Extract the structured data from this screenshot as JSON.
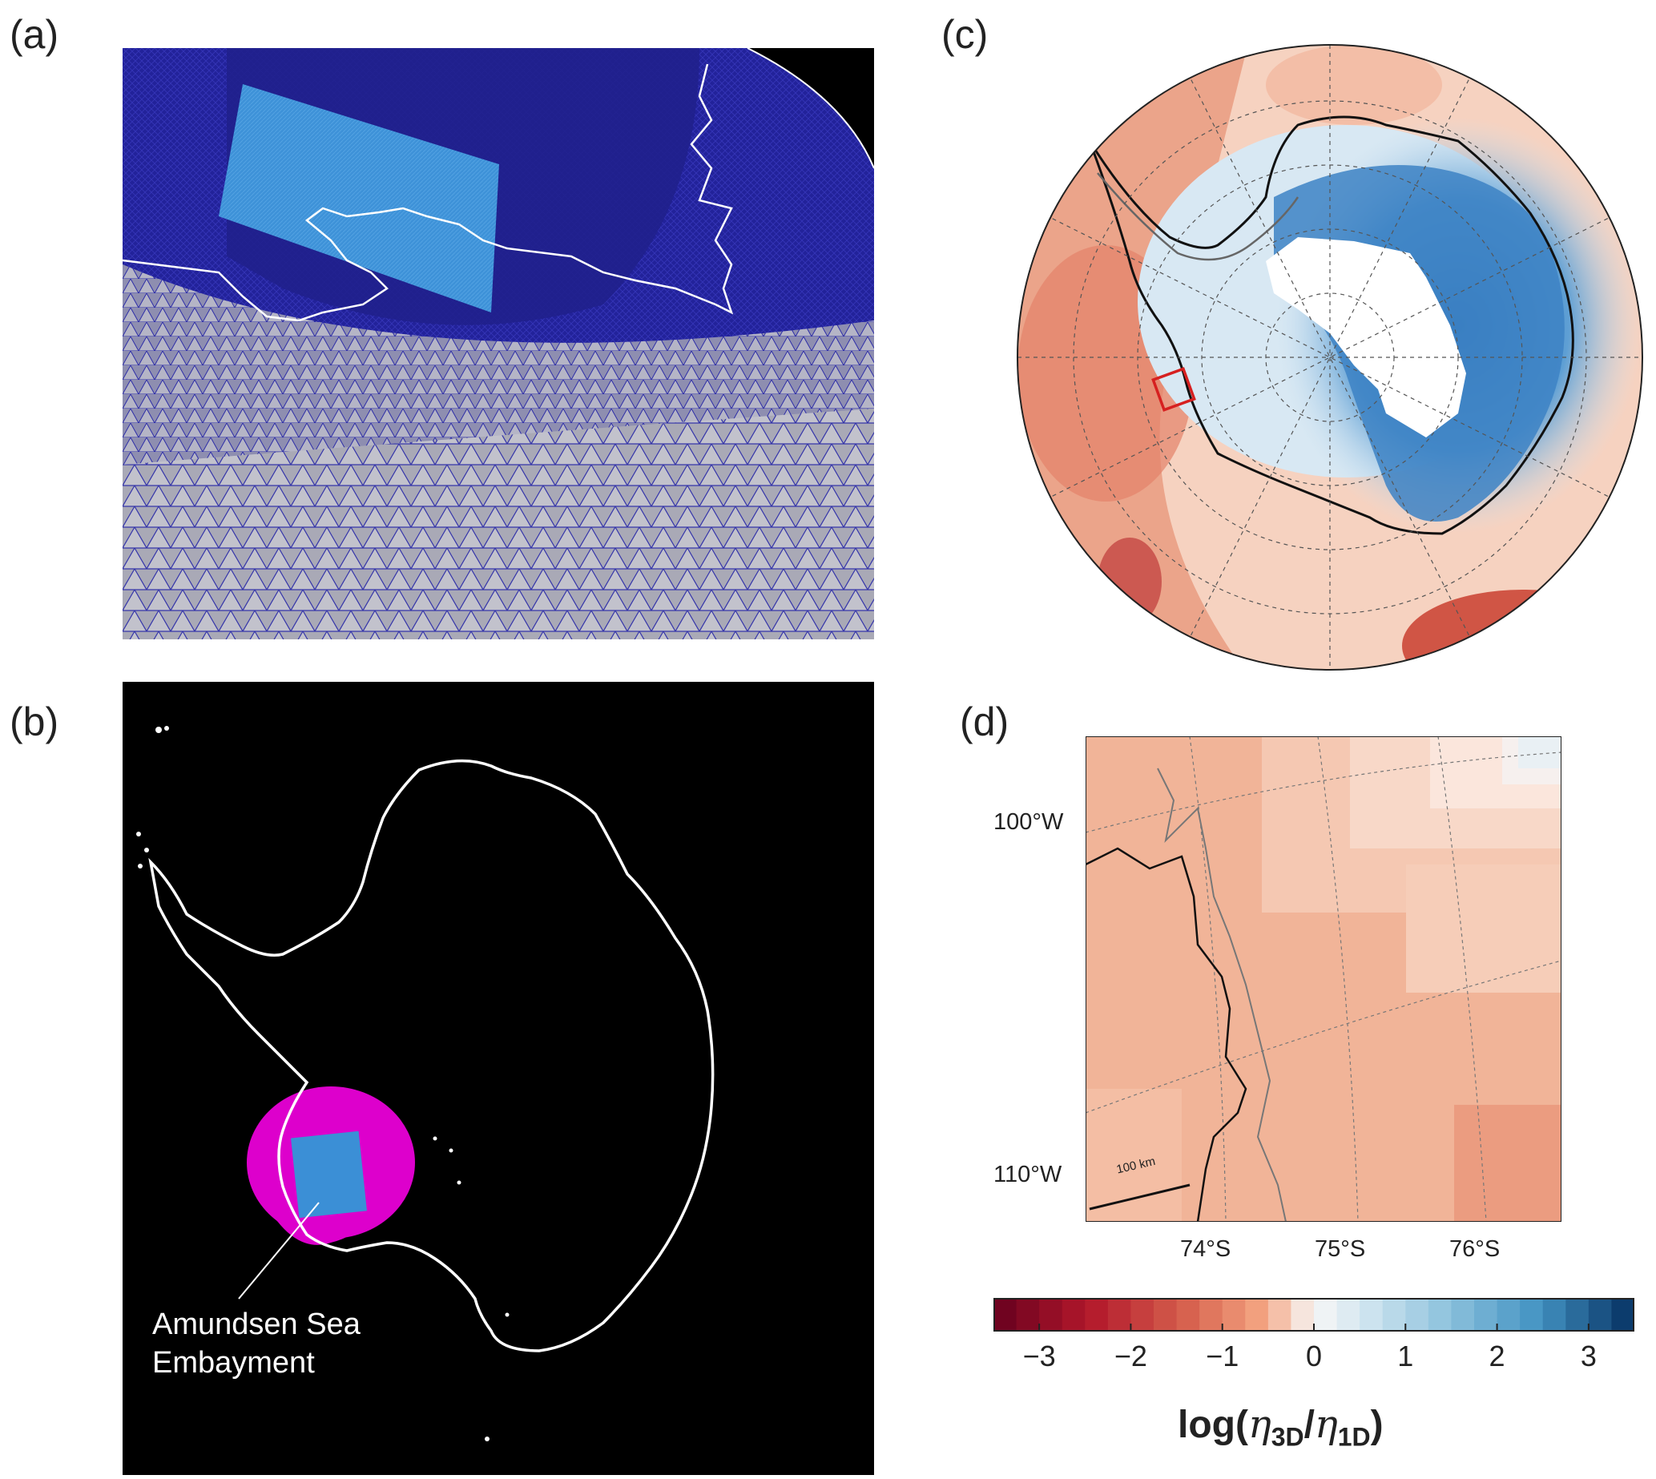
{
  "panels": {
    "a": {
      "label": "(a)"
    },
    "b": {
      "label": "(b)",
      "annotation_line1": "Amundsen Sea",
      "annotation_line2": "Embayment"
    },
    "c": {
      "label": "(c)"
    },
    "d": {
      "label": "(d)",
      "lon_labels": [
        "100°W",
        "110°W"
      ],
      "lat_labels": [
        "74°S",
        "75°S",
        "76°S"
      ],
      "scalebar_label": "100 km"
    }
  },
  "colorbar": {
    "ticks": [
      "−3",
      "−2",
      "−1",
      "0",
      "1",
      "2",
      "3"
    ],
    "range": [
      -3.5,
      3.5
    ],
    "colormap": "red-white-blue",
    "label_prefix": "log(",
    "label_eta": "η",
    "label_sub1": "3D",
    "label_sub2": "1D",
    "label_suffix": ")"
  },
  "colors": {
    "mesh_blue": "#1a1a8c",
    "refined_blue": "#3b8fd6",
    "mesh_grey": "#a7a7b4",
    "embayment_magenta": "#dd00cc",
    "box_red": "#d62020"
  }
}
